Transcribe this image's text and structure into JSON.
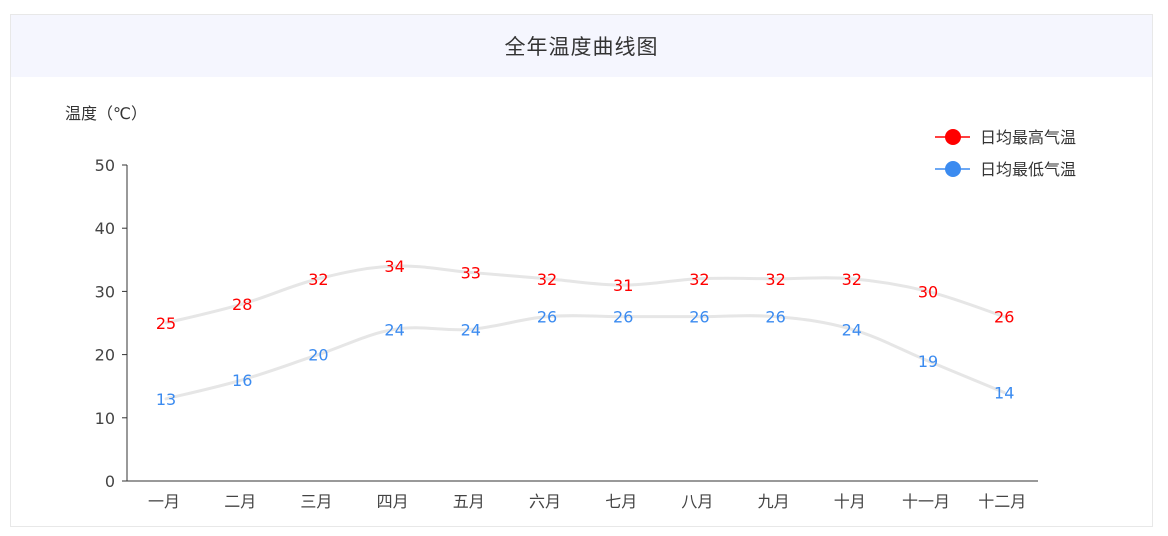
{
  "header": {
    "title": "全年温度曲线图"
  },
  "colors": {
    "high": "#ff0000",
    "low": "#3b8bf0",
    "line": "#e6e6e6",
    "header_bg": "#f5f6fe"
  },
  "chart_data": {
    "type": "line",
    "title": "全年温度曲线图",
    "ylabel": "温度（℃）",
    "xlabel": "",
    "categories": [
      "一月",
      "二月",
      "三月",
      "四月",
      "五月",
      "六月",
      "七月",
      "八月",
      "九月",
      "十月",
      "十一月",
      "十二月"
    ],
    "ylim": [
      0,
      50
    ],
    "yticks": [
      0,
      10,
      20,
      30,
      40,
      50
    ],
    "grid": false,
    "legend_position": "top-right",
    "series": [
      {
        "name": "日均最高气温",
        "color": "#ff0000",
        "values": [
          25,
          28,
          32,
          34,
          33,
          32,
          31,
          32,
          32,
          32,
          30,
          26
        ]
      },
      {
        "name": "日均最低气温",
        "color": "#3b8bf0",
        "values": [
          13,
          16,
          20,
          24,
          24,
          26,
          26,
          26,
          26,
          24,
          19,
          14
        ]
      }
    ]
  }
}
